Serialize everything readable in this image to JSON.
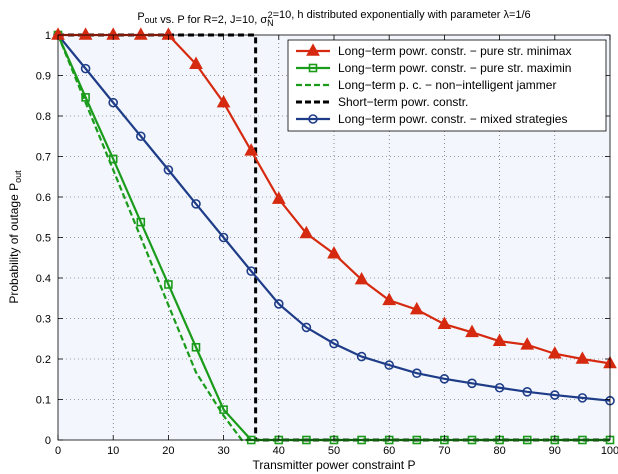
{
  "chart_data": {
    "type": "line",
    "title": {
      "parts": [
        {
          "t": "P",
          "k": "n"
        },
        {
          "t": "out",
          "k": "sub"
        },
        {
          "t": " vs. P for R=2, J=10, σ",
          "k": "n"
        },
        {
          "t": "N",
          "k": "sub"
        },
        {
          "t": "2",
          "k": "sup"
        },
        {
          "t": "=10, h distributed exponentially with parameter λ=1/6",
          "k": "n"
        }
      ]
    },
    "xlabel": "Transmitter power constraint P",
    "ylabel": {
      "parts": [
        {
          "t": "Probability of outage P",
          "k": "n"
        },
        {
          "t": "out",
          "k": "sub"
        }
      ]
    },
    "xlim": [
      0,
      100
    ],
    "ylim": [
      0,
      1
    ],
    "xticks": [
      0,
      10,
      20,
      30,
      40,
      50,
      60,
      70,
      80,
      90,
      100
    ],
    "yticks": [
      0,
      0.1,
      0.2,
      0.3,
      0.4,
      0.5,
      0.6,
      0.7,
      0.8,
      0.9,
      1
    ],
    "ytick_labels": [
      "0",
      "0.1",
      "0.2",
      "0.3",
      "0.4",
      "0.5",
      "0.6",
      "0.7",
      "0.8",
      "0.9",
      "1"
    ],
    "grid": true,
    "legend_position": "top-right",
    "background": "#f3f7fd",
    "series": [
      {
        "name": "Long−term powr. constr. − pure str. minimax",
        "color": "#d62a10",
        "marker": "triangle",
        "dash": "solid",
        "x": [
          0,
          5,
          10,
          15,
          20,
          25,
          30,
          35,
          40,
          45,
          50,
          55,
          60,
          65,
          70,
          75,
          80,
          85,
          90,
          95,
          100
        ],
        "y": [
          1,
          1,
          1,
          1,
          1,
          0.928,
          0.833,
          0.714,
          0.595,
          0.51,
          0.46,
          0.396,
          0.345,
          0.322,
          0.286,
          0.266,
          0.244,
          0.235,
          0.213,
          0.2,
          0.189
        ]
      },
      {
        "name": "Long−term powr. constr. − pure str. maximin",
        "color": "#1a9b1a",
        "marker": "square",
        "dash": "solid",
        "x": [
          0,
          5,
          10,
          15,
          20,
          25,
          30,
          35,
          40,
          45,
          50,
          55,
          60,
          65,
          70,
          75,
          80,
          85,
          90,
          95,
          100
        ],
        "y": [
          1,
          0.846,
          0.694,
          0.538,
          0.384,
          0.229,
          0.075,
          0,
          0,
          0,
          0,
          0,
          0,
          0,
          0,
          0,
          0,
          0,
          0,
          0,
          0
        ]
      },
      {
        "name": "Long−term p. c. − non−intelligent jammer",
        "color": "#1a9b1a",
        "marker": "none",
        "dash": "dashed",
        "x": [
          0,
          5,
          10,
          15,
          20,
          25,
          30,
          33.3,
          35,
          100
        ],
        "y": [
          1,
          0.833,
          0.667,
          0.5,
          0.333,
          0.167,
          0.06,
          0,
          0,
          0
        ]
      },
      {
        "name": "Short−term powr. constr.",
        "color": "#000000",
        "marker": "none",
        "dash": "dashed",
        "x": [
          0,
          35.8,
          35.8,
          100
        ],
        "y": [
          1,
          1,
          0,
          0
        ]
      },
      {
        "name": "Long−term powr. constr. − mixed strategies",
        "color": "#1f3c88",
        "marker": "circle",
        "dash": "solid",
        "x": [
          0,
          5,
          10,
          15,
          20,
          25,
          30,
          35,
          40,
          45,
          50,
          55,
          60,
          65,
          70,
          75,
          80,
          85,
          90,
          95,
          100
        ],
        "y": [
          1,
          0.917,
          0.833,
          0.75,
          0.667,
          0.583,
          0.5,
          0.417,
          0.336,
          0.278,
          0.238,
          0.206,
          0.185,
          0.165,
          0.151,
          0.14,
          0.129,
          0.119,
          0.111,
          0.104,
          0.097
        ]
      }
    ]
  }
}
